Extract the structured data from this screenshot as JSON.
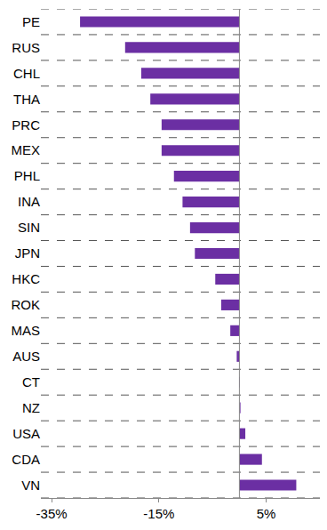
{
  "chart_data": {
    "type": "bar",
    "orientation": "horizontal",
    "categories": [
      "PE",
      "RUS",
      "CHL",
      "THA",
      "PRC",
      "MEX",
      "PHL",
      "INA",
      "SIN",
      "JPN",
      "HKC",
      "ROK",
      "MAS",
      "AUS",
      "CT",
      "NZ",
      "USA",
      "CDA",
      "VN"
    ],
    "values": [
      -29.7,
      -21.3,
      -18.3,
      -16.6,
      -14.5,
      -14.5,
      -12.2,
      -10.6,
      -9.2,
      -8.3,
      -4.5,
      -3.4,
      -1.7,
      -0.5,
      0.1,
      0.2,
      1.1,
      4.2,
      10.6
    ],
    "color": "#6b2fa3",
    "xlim": [
      -37,
      15
    ],
    "xticks": [
      {
        "value": -35,
        "label": "-35%"
      },
      {
        "value": -15,
        "label": "-15%"
      },
      {
        "value": 5,
        "label": "5%"
      }
    ],
    "grid": true
  }
}
